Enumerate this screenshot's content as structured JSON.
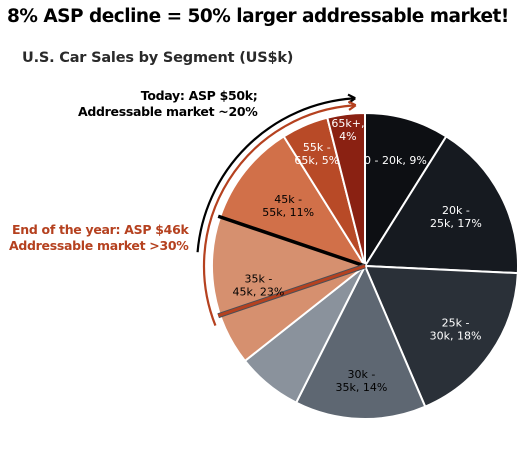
{
  "headline": "8% ASP decline = 50% larger addressable market!",
  "chart_data": {
    "type": "pie",
    "title": "U.S. Car Sales by Segment (US$k)",
    "slices": [
      {
        "label_line1": "0 - 20k, 9%",
        "label_line2": "",
        "value": 9,
        "color": "#0d0f13",
        "text_color": "#ffffff"
      },
      {
        "label_line1": "20k -",
        "label_line2": "25k, 17%",
        "value": 17,
        "color": "#161a20",
        "text_color": "#ffffff"
      },
      {
        "label_line1": "25k -",
        "label_line2": "30k, 18%",
        "value": 18,
        "color": "#2a3038",
        "text_color": "#ffffff"
      },
      {
        "label_line1": "30k -",
        "label_line2": "35k, 14%",
        "value": 14,
        "color": "#5e6772",
        "text_color": "#000000"
      },
      {
        "label_line1": "",
        "label_line2": "",
        "value": 7,
        "color": "#8a929c",
        "text_color": "#000000"
      },
      {
        "label_line1": "35k -",
        "label_line2": "45k, 23%",
        "value": 16,
        "color": "#d6906f",
        "text_color": "#000000"
      },
      {
        "label_line1": "45k -",
        "label_line2": "55k, 11%",
        "value": 11,
        "color": "#d17049",
        "text_color": "#000000"
      },
      {
        "label_line1": "55k -",
        "label_line2": "65k, 5%",
        "value": 5,
        "color": "#b84a27",
        "text_color": "#ffffff"
      },
      {
        "label_line1": "65k+,",
        "label_line2": "4%",
        "value": 4,
        "color": "#8a2112",
        "text_color": "#ffffff"
      }
    ],
    "annotations": {
      "today_line1": "Today: ASP $50k;",
      "today_line2": "Addressable market ~20%",
      "eoy_line1": "End of the year: ASP $46k",
      "eoy_line2": "Addressable market >30%"
    },
    "colors": {
      "today_marker": "#000000",
      "eoy_marker": "#b5411f"
    }
  }
}
